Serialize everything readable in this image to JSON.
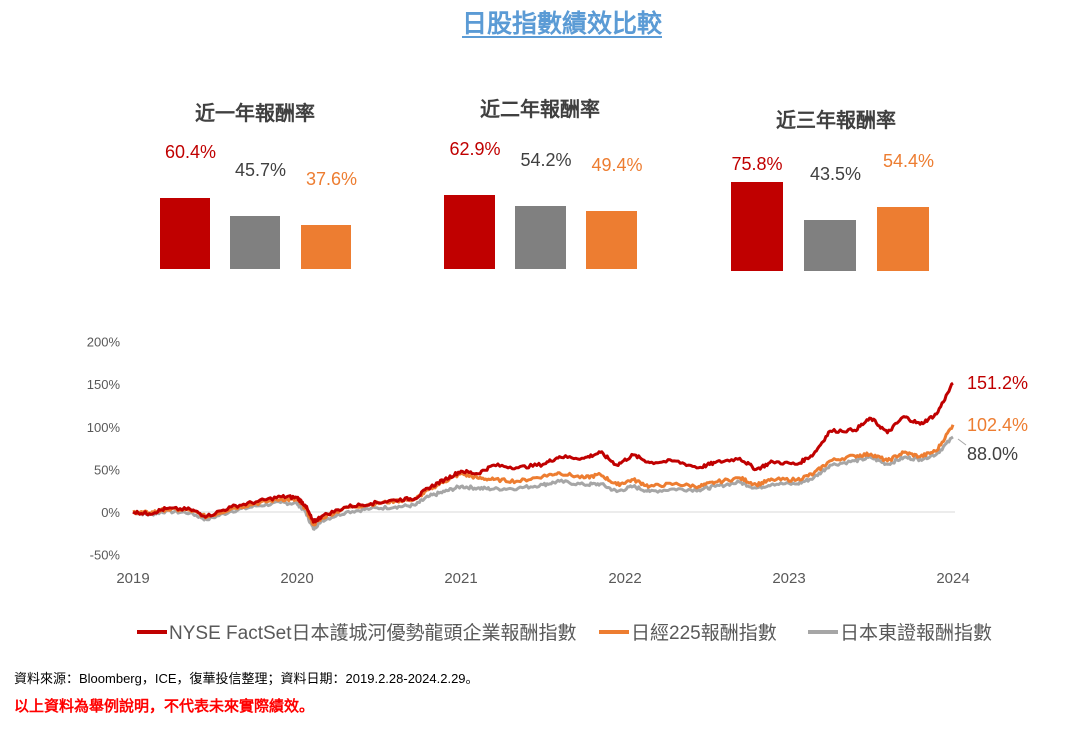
{
  "title": "日股指數績效比較",
  "colors": {
    "nyse": "#c00000",
    "nikkei": "#ed7d31",
    "topix": "#a6a6a6",
    "title": "#5b9bd5"
  },
  "bar_groups": [
    {
      "title": "近一年報酬率",
      "values": [
        60.4,
        45.7,
        37.6
      ],
      "labels": [
        "60.4%",
        "45.7%",
        "37.6%"
      ]
    },
    {
      "title": "近二年報酬率",
      "values": [
        62.9,
        54.2,
        49.4
      ],
      "labels": [
        "62.9%",
        "54.2%",
        "49.4%"
      ]
    },
    {
      "title": "近三年報酬率",
      "values": [
        75.8,
        43.5,
        54.4
      ],
      "labels": [
        "75.8%",
        "43.5%",
        "54.4%"
      ]
    }
  ],
  "chart_data": {
    "type": "line",
    "xlim": [
      2019,
      2024
    ],
    "ylim": [
      -50,
      200
    ],
    "x_ticks": [
      "2019",
      "2020",
      "2021",
      "2022",
      "2023",
      "2024"
    ],
    "y_ticks": [
      "-50%",
      "0%",
      "50%",
      "100%",
      "150%",
      "200%"
    ],
    "grid": false,
    "legend": "bottom",
    "series": [
      {
        "name": "NYSE FactSet日本護城河優勢龍頭企業報酬指數",
        "color": "#c00000",
        "end_label": "151.2%",
        "x": [
          2019,
          2019.1,
          2019.2,
          2019.35,
          2019.45,
          2019.6,
          2019.75,
          2019.9,
          2020.0,
          2020.05,
          2020.1,
          2020.15,
          2020.3,
          2020.45,
          2020.6,
          2020.72,
          2020.8,
          2020.9,
          2021.0,
          2021.1,
          2021.2,
          2021.35,
          2021.5,
          2021.6,
          2021.75,
          2021.85,
          2021.95,
          2022.05,
          2022.15,
          2022.3,
          2022.45,
          2022.55,
          2022.7,
          2022.8,
          2022.9,
          2023.05,
          2023.15,
          2023.25,
          2023.4,
          2023.5,
          2023.6,
          2023.7,
          2023.8,
          2023.9,
          2024.0
        ],
        "y": [
          0,
          -2,
          4,
          3,
          -5,
          6,
          12,
          18,
          17,
          8,
          -12,
          -5,
          6,
          10,
          14,
          16,
          28,
          38,
          48,
          45,
          55,
          52,
          56,
          65,
          63,
          70,
          55,
          67,
          58,
          60,
          52,
          58,
          63,
          50,
          59,
          56,
          68,
          95,
          96,
          110,
          93,
          112,
          103,
          115,
          151.2
        ]
      },
      {
        "name": "日經225報酬指數",
        "color": "#ed7d31",
        "end_label": "102.4%",
        "x": [
          2019,
          2019.1,
          2019.2,
          2019.35,
          2019.45,
          2019.6,
          2019.75,
          2019.9,
          2020.0,
          2020.05,
          2020.1,
          2020.15,
          2020.3,
          2020.45,
          2020.6,
          2020.72,
          2020.8,
          2020.9,
          2021.0,
          2021.1,
          2021.2,
          2021.35,
          2021.5,
          2021.6,
          2021.75,
          2021.85,
          2021.95,
          2022.05,
          2022.15,
          2022.3,
          2022.45,
          2022.55,
          2022.7,
          2022.8,
          2022.9,
          2023.05,
          2023.15,
          2023.25,
          2023.4,
          2023.5,
          2023.6,
          2023.7,
          2023.8,
          2023.9,
          2024.0
        ],
        "y": [
          0,
          -1,
          3,
          2,
          -6,
          4,
          10,
          15,
          14,
          5,
          -15,
          -7,
          5,
          9,
          13,
          15,
          26,
          36,
          45,
          40,
          38,
          36,
          42,
          46,
          40,
          44,
          32,
          38,
          30,
          33,
          30,
          35,
          40,
          32,
          38,
          38,
          45,
          60,
          66,
          68,
          60,
          70,
          65,
          72,
          102.4
        ]
      },
      {
        "name": "日本東證報酬指數",
        "color": "#a6a6a6",
        "end_label": "88.0%",
        "x": [
          2019,
          2019.1,
          2019.2,
          2019.35,
          2019.45,
          2019.6,
          2019.75,
          2019.9,
          2020.0,
          2020.05,
          2020.1,
          2020.15,
          2020.3,
          2020.45,
          2020.6,
          2020.72,
          2020.8,
          2020.9,
          2021.0,
          2021.1,
          2021.2,
          2021.35,
          2021.5,
          2021.6,
          2021.75,
          2021.85,
          2021.95,
          2022.05,
          2022.15,
          2022.3,
          2022.45,
          2022.55,
          2022.7,
          2022.8,
          2022.9,
          2023.05,
          2023.15,
          2023.25,
          2023.4,
          2023.5,
          2023.6,
          2023.7,
          2023.8,
          2023.9,
          2024.0
        ],
        "y": [
          0,
          -3,
          1,
          -1,
          -9,
          1,
          7,
          11,
          10,
          1,
          -20,
          -10,
          0,
          4,
          6,
          8,
          18,
          24,
          30,
          28,
          27,
          28,
          32,
          36,
          32,
          33,
          24,
          30,
          24,
          27,
          26,
          30,
          35,
          28,
          33,
          33,
          40,
          55,
          60,
          64,
          56,
          64,
          62,
          68,
          88.0
        ]
      }
    ]
  },
  "source": "資料來源：Bloomberg，ICE，復華投信整理；資料日期：2019.2.28-2024.2.29。",
  "disclaimer": "以上資料為舉例說明，不代表未來實際績效。"
}
